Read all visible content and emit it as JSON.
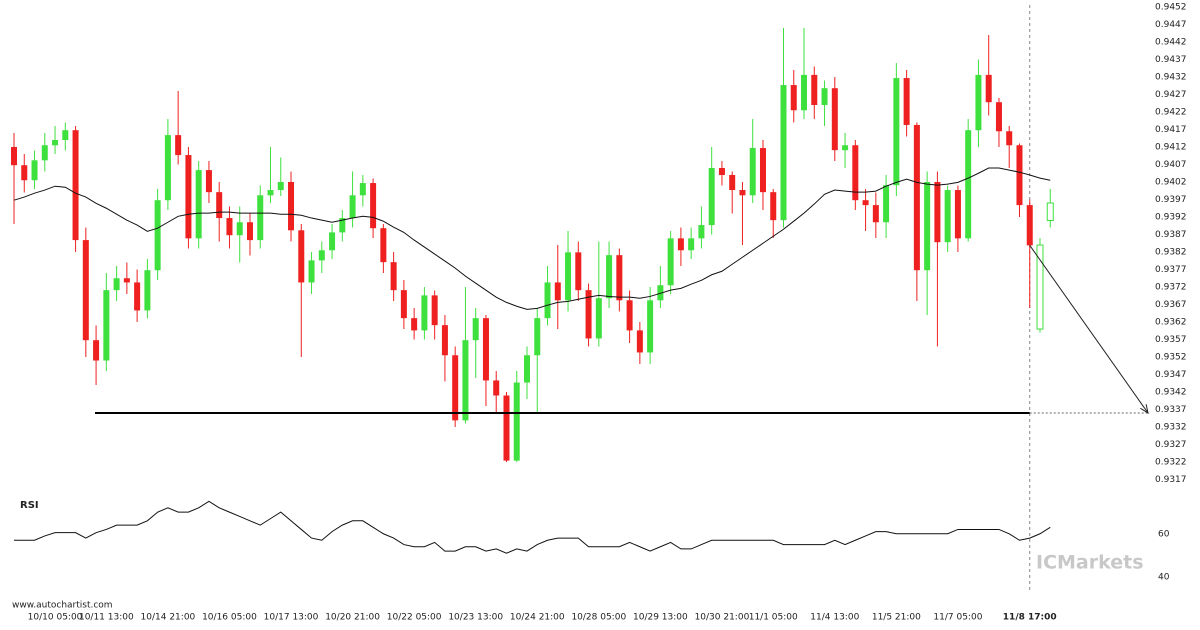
{
  "chart_data": {
    "type": "candlestick",
    "categories": [
      null,
      null,
      null,
      null,
      "10/10 05:00",
      null,
      null,
      null,
      null,
      "10/11 13:00",
      null,
      null,
      null,
      null,
      null,
      "10/14 21:00",
      null,
      null,
      null,
      null,
      null,
      "10/16 05:00",
      null,
      null,
      null,
      null,
      null,
      "10/17 13:00",
      null,
      null,
      null,
      null,
      null,
      "10/20 21:00",
      null,
      null,
      null,
      null,
      null,
      "10/22 05:00",
      null,
      null,
      null,
      null,
      null,
      "10/23 13:00",
      null,
      null,
      null,
      null,
      null,
      "10/24 21:00",
      null,
      null,
      null,
      null,
      null,
      "10/28 05:00",
      null,
      null,
      null,
      null,
      null,
      "10/29 13:00",
      null,
      null,
      null,
      null,
      null,
      "10/30 21:00",
      null,
      null,
      null,
      null,
      "11/1 05:00",
      null,
      null,
      null,
      null,
      null,
      "11/4 13:00",
      null,
      null,
      null,
      null,
      null,
      "11/5 21:00",
      null,
      null,
      null,
      null,
      null,
      "11/7 05:00",
      null,
      null,
      null,
      null,
      null,
      null,
      "11/8 17:00",
      null,
      null
    ],
    "open": [
      0.9412,
      0.94068,
      0.94025,
      0.94082,
      0.94125,
      0.9414,
      0.94168,
      0.93854,
      0.93568,
      0.9351,
      0.93711,
      0.93745,
      0.93733,
      0.93653,
      0.93768,
      0.93968,
      0.94154,
      0.94097,
      0.93859,
      0.94054,
      0.93991,
      0.93917,
      0.93868,
      0.93905,
      0.93854,
      0.93982,
      0.93997,
      0.9402,
      0.93882,
      0.93733,
      0.93796,
      0.93825,
      0.93876,
      0.93917,
      0.93982,
      0.94017,
      0.93888,
      0.93791,
      0.93711,
      0.93631,
      0.93596,
      0.93696,
      0.93611,
      0.93525,
      0.93339,
      0.93568,
      0.93631,
      0.93453,
      0.9341,
      0.93224,
      0.93447,
      0.93525,
      0.93631,
      0.93733,
      0.93682,
      0.93819,
      0.93711,
      0.93573,
      0.93688,
      0.93811,
      0.93682,
      0.93596,
      0.93533,
      0.93682,
      0.93725,
      0.93859,
      0.93825,
      0.93859,
      0.93897,
      0.9406,
      0.9404,
      0.93997,
      0.93982,
      0.94117,
      0.93991,
      0.93911,
      0.94297,
      0.94225,
      0.94326,
      0.9424,
      0.94288,
      0.94111,
      0.94125,
      0.93968,
      0.93954,
      0.93905,
      0.94011,
      0.94317,
      0.94183,
      0.93768,
      0.9402,
      0.93848,
      0.93997,
      0.93859,
      0.94168,
      0.94326,
      0.94248,
      0.94165,
      0.94125,
      0.93954,
      0.936,
      0.9391
    ],
    "high": [
      0.9416,
      0.941,
      0.9411,
      0.9416,
      0.9418,
      0.9419,
      0.9418,
      0.9389,
      0.9361,
      0.9376,
      0.9378,
      0.9379,
      0.9377,
      0.938,
      0.94,
      0.942,
      0.9428,
      0.9412,
      0.9408,
      0.9408,
      0.9402,
      0.9395,
      0.9395,
      0.9393,
      0.9401,
      0.9412,
      0.9409,
      0.9405,
      0.939,
      0.9382,
      0.9385,
      0.939,
      0.9394,
      0.9405,
      0.9404,
      0.9403,
      0.939,
      0.9382,
      0.9374,
      0.9366,
      0.9372,
      0.9371,
      0.9364,
      0.9355,
      0.9372,
      0.9366,
      0.9364,
      0.9348,
      0.9342,
      0.9348,
      0.9355,
      0.9366,
      0.9378,
      0.9384,
      0.9388,
      0.9385,
      0.9373,
      0.9385,
      0.9385,
      0.9383,
      0.9371,
      0.9362,
      0.9372,
      0.9378,
      0.9388,
      0.9389,
      0.9389,
      0.9395,
      0.9412,
      0.9408,
      0.9405,
      0.9402,
      0.942,
      0.9414,
      0.94,
      0.9446,
      0.9434,
      0.9446,
      0.9435,
      0.9431,
      0.9432,
      0.9416,
      0.9414,
      0.94,
      0.9399,
      0.9404,
      0.9436,
      0.9434,
      0.9419,
      0.9405,
      0.9405,
      0.9401,
      0.9401,
      0.942,
      0.9437,
      0.9444,
      0.9426,
      0.9418,
      0.9413,
      0.9397,
      0.9386,
      0.94
    ],
    "low": [
      0.939,
      0.9399,
      0.94,
      0.9405,
      0.941,
      0.9411,
      0.9382,
      0.9352,
      0.9344,
      0.9348,
      0.9368,
      0.937,
      0.9362,
      0.9363,
      0.9374,
      0.9394,
      0.9407,
      0.9383,
      0.9383,
      0.9396,
      0.9385,
      0.9383,
      0.9379,
      0.9381,
      0.9383,
      0.9396,
      0.9398,
      0.9385,
      0.9352,
      0.937,
      0.9376,
      0.938,
      0.9385,
      0.9389,
      0.9395,
      0.9386,
      0.9376,
      0.9368,
      0.936,
      0.9357,
      0.9357,
      0.9357,
      0.9345,
      0.9332,
      0.9333,
      0.9346,
      0.9338,
      0.9336,
      0.9322,
      0.9322,
      0.934,
      0.9336,
      0.9361,
      0.936,
      0.9365,
      0.9368,
      0.9355,
      0.9355,
      0.9366,
      0.9365,
      0.9356,
      0.935,
      0.935,
      0.9366,
      0.937,
      0.9378,
      0.938,
      0.9383,
      0.9387,
      0.9401,
      0.9393,
      0.9384,
      0.9396,
      0.9394,
      0.9386,
      0.9389,
      0.9419,
      0.942,
      0.942,
      0.9418,
      0.9408,
      0.9406,
      0.9394,
      0.9388,
      0.9386,
      0.9386,
      0.9398,
      0.9415,
      0.9368,
      0.9364,
      0.9355,
      0.9382,
      0.9382,
      0.9385,
      0.9412,
      0.9421,
      0.9412,
      0.9406,
      0.9392,
      0.9366,
      0.9359,
      0.9389
    ],
    "close": [
      0.94068,
      0.94025,
      0.94082,
      0.94125,
      0.9414,
      0.94168,
      0.93854,
      0.93568,
      0.9351,
      0.93711,
      0.93745,
      0.93733,
      0.93653,
      0.93768,
      0.93968,
      0.94154,
      0.94097,
      0.93859,
      0.94054,
      0.93991,
      0.93917,
      0.93868,
      0.93905,
      0.93854,
      0.93982,
      0.93997,
      0.9402,
      0.93882,
      0.93733,
      0.93796,
      0.93825,
      0.93876,
      0.93917,
      0.93982,
      0.94017,
      0.93888,
      0.93791,
      0.93711,
      0.93631,
      0.93596,
      0.93696,
      0.93611,
      0.93525,
      0.93339,
      0.93568,
      0.93631,
      0.93453,
      0.9341,
      0.93224,
      0.93447,
      0.93525,
      0.93631,
      0.93733,
      0.93682,
      0.93819,
      0.93711,
      0.93573,
      0.93688,
      0.93811,
      0.93682,
      0.93596,
      0.93533,
      0.93682,
      0.93725,
      0.93859,
      0.93825,
      0.93859,
      0.93897,
      0.9406,
      0.9404,
      0.93997,
      0.93982,
      0.94117,
      0.93991,
      0.93911,
      0.94297,
      0.94225,
      0.94326,
      0.9424,
      0.94288,
      0.94111,
      0.94125,
      0.93968,
      0.93954,
      0.93905,
      0.94011,
      0.94317,
      0.94183,
      0.93768,
      0.9402,
      0.93848,
      0.93997,
      0.93859,
      0.94168,
      0.94326,
      0.94248,
      0.94165,
      0.94125,
      0.93954,
      0.93839,
      0.9384,
      0.9396
    ],
    "ma": [
      0.93968,
      0.93977,
      0.93988,
      0.93997,
      0.94008,
      0.94005,
      0.93988,
      0.93977,
      0.93959,
      0.93945,
      0.93928,
      0.93911,
      0.93897,
      0.93879,
      0.93888,
      0.93905,
      0.93922,
      0.93928,
      0.93931,
      0.93931,
      0.93934,
      0.93934,
      0.93931,
      0.93931,
      0.93931,
      0.93931,
      0.93928,
      0.93928,
      0.93925,
      0.93917,
      0.93911,
      0.93905,
      0.93911,
      0.93917,
      0.93922,
      0.93919,
      0.93908,
      0.93891,
      0.93876,
      0.93854,
      0.93834,
      0.93814,
      0.93794,
      0.93774,
      0.93751,
      0.93731,
      0.93711,
      0.93691,
      0.93676,
      0.93665,
      0.93656,
      0.93659,
      0.93668,
      0.93676,
      0.93679,
      0.93685,
      0.93691,
      0.93696,
      0.93693,
      0.93691,
      0.93691,
      0.93688,
      0.93693,
      0.93702,
      0.93711,
      0.93716,
      0.93728,
      0.93739,
      0.93755,
      0.93765,
      0.93785,
      0.93805,
      0.93825,
      0.93845,
      0.93865,
      0.93885,
      0.93908,
      0.93931,
      0.93957,
      0.93985,
      0.93997,
      0.93994,
      0.93991,
      0.93991,
      0.93994,
      0.94008,
      0.94019,
      0.94028,
      0.94019,
      0.94014,
      0.94011,
      0.94014,
      0.94019,
      0.94031,
      0.94045,
      0.9406,
      0.9406,
      0.94054,
      0.94048,
      0.9404,
      0.94031,
      0.94025
    ],
    "up_color": "#3ee03e",
    "down_color": "#ee2020",
    "ma_color": "#111111",
    "ylim": [
      0.9314,
      0.9454
    ],
    "yticks": [
      0.9452,
      0.9447,
      0.9442,
      0.9437,
      0.9432,
      0.9427,
      0.9422,
      0.9417,
      0.9412,
      0.9407,
      0.9402,
      0.9397,
      0.9392,
      0.9387,
      0.9382,
      0.9377,
      0.9372,
      0.9367,
      0.9362,
      0.9357,
      0.9352,
      0.9347,
      0.9342,
      0.9337,
      0.9332,
      0.9327,
      0.9322,
      0.9317
    ],
    "support": 0.9336,
    "rsi": {
      "title": "RSI",
      "values": [
        57,
        57,
        57,
        59,
        60.5,
        60.5,
        60.5,
        58,
        60.5,
        62,
        64,
        64,
        64,
        66,
        70,
        72,
        70,
        70,
        72,
        75,
        72,
        70,
        68,
        66,
        64,
        67,
        70,
        66,
        62,
        58,
        57,
        61,
        64,
        66,
        66,
        63,
        60,
        58,
        55,
        54,
        54,
        56,
        52,
        52,
        54,
        54,
        52,
        53,
        51,
        53,
        52,
        55,
        57,
        58,
        58,
        58,
        54,
        54,
        54,
        54,
        56,
        54,
        52,
        54,
        56,
        53,
        53,
        55,
        57,
        57,
        57,
        57,
        57,
        57,
        57,
        55,
        55,
        55,
        55,
        55,
        57,
        55,
        57,
        59,
        61,
        61,
        60,
        60,
        60,
        60,
        60,
        60,
        62,
        62,
        62,
        62,
        62,
        60,
        57,
        58,
        60,
        63
      ],
      "ylim": [
        34,
        77
      ],
      "yticks": [
        60,
        40
      ]
    },
    "source": "www.autochartist.com",
    "brand": "ICMarkets"
  }
}
